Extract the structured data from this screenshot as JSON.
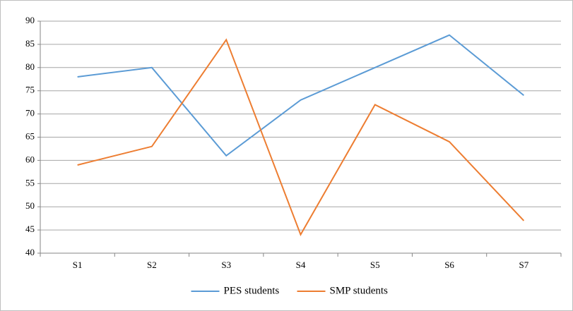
{
  "chart_data": {
    "type": "line",
    "categories": [
      "S1",
      "S2",
      "S3",
      "S4",
      "S5",
      "S6",
      "S7"
    ],
    "series": [
      {
        "name": "PES students",
        "color": "#5b9bd5",
        "values": [
          78,
          80,
          61,
          73,
          80,
          87,
          74
        ]
      },
      {
        "name": "SMP students",
        "color": "#ed7d31",
        "values": [
          59,
          63,
          86,
          44,
          72,
          64,
          47
        ]
      }
    ],
    "ylim": [
      40,
      90
    ],
    "yticks": [
      40,
      45,
      50,
      55,
      60,
      65,
      70,
      75,
      80,
      85,
      90
    ],
    "grid": true,
    "legend": "bottom"
  }
}
